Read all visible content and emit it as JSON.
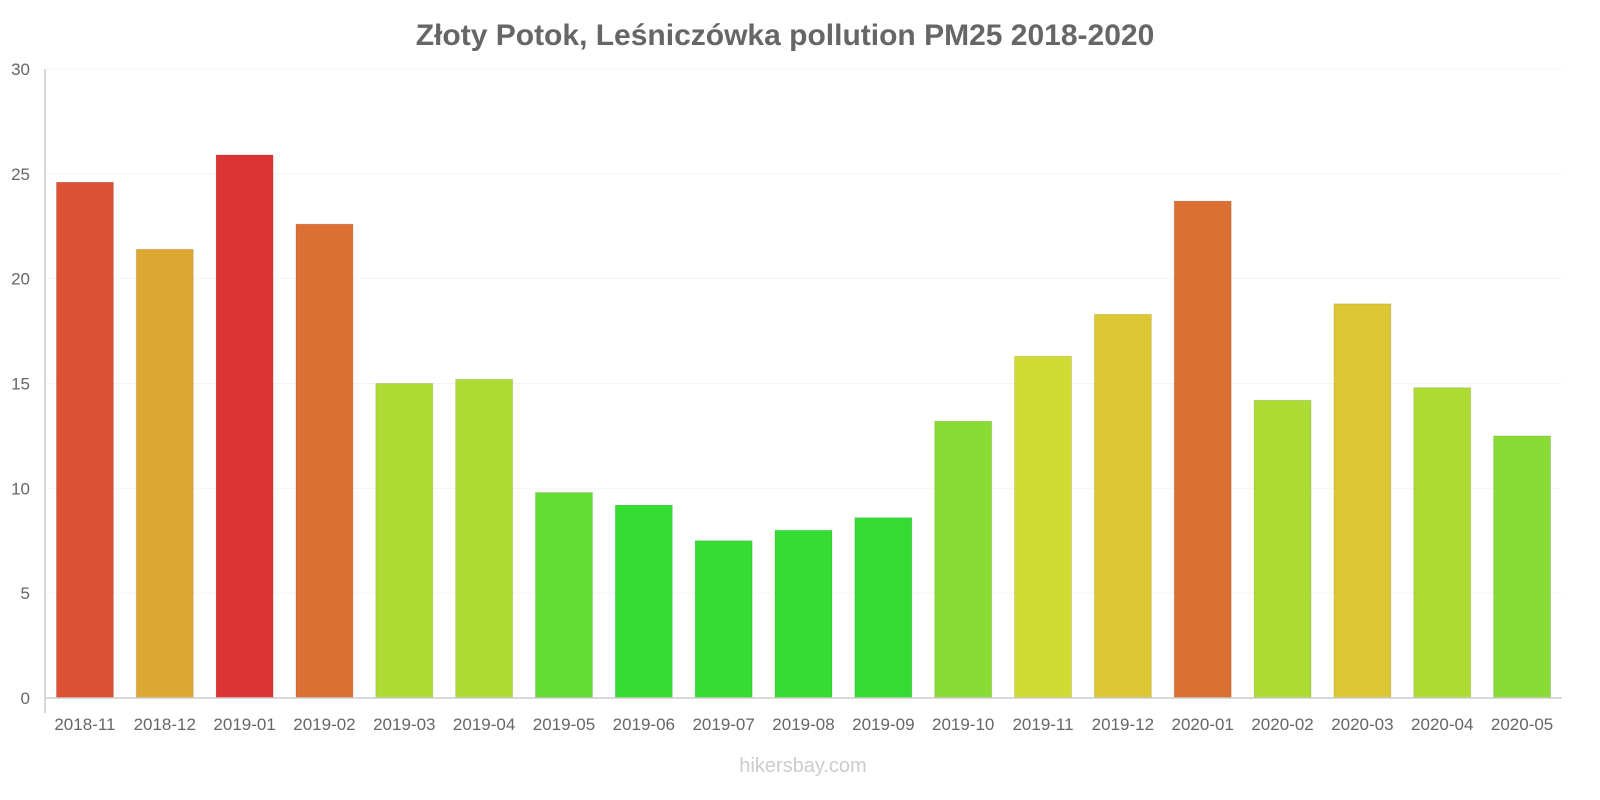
{
  "chart_data": {
    "type": "bar",
    "title": "Złoty Potok, Leśniczówka pollution PM25 2018-2020",
    "xlabel": "",
    "ylabel": "",
    "ylim": [
      0,
      30
    ],
    "yticks": [
      0,
      5,
      10,
      15,
      20,
      25,
      30
    ],
    "grid": true,
    "categories": [
      "2018-11",
      "2018-12",
      "2019-01",
      "2019-02",
      "2019-03",
      "2019-04",
      "2019-05",
      "2019-06",
      "2019-07",
      "2019-08",
      "2019-09",
      "2019-10",
      "2019-11",
      "2019-12",
      "2020-01",
      "2020-02",
      "2020-03",
      "2020-04",
      "2020-05"
    ],
    "values": [
      24.6,
      21.4,
      25.9,
      22.6,
      15.0,
      15.2,
      9.8,
      9.2,
      7.5,
      8.0,
      8.6,
      13.2,
      16.3,
      18.3,
      23.7,
      14.2,
      18.8,
      14.8,
      12.5
    ],
    "colors": [
      "#dc5034",
      "#dca834",
      "#dc3434",
      "#dc6f34",
      "#acdc34",
      "#acdc34",
      "#65dc34",
      "#34dc34",
      "#34dc34",
      "#34dc34",
      "#34dc34",
      "#89dc34",
      "#cfdc34",
      "#dcc834",
      "#dc6f34",
      "#acdc34",
      "#dcc834",
      "#acdc34",
      "#89dc34"
    ]
  },
  "watermark": "hikersbay.com"
}
